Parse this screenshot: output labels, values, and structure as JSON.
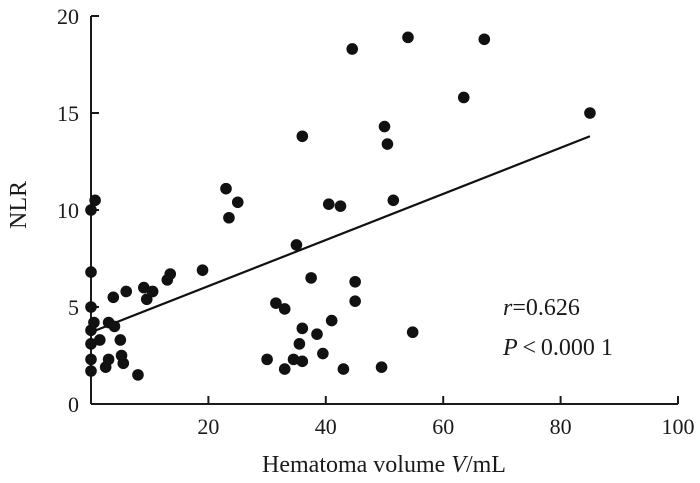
{
  "chart_data": {
    "type": "scatter",
    "xlabel": {
      "prefix": "Hematoma volume ",
      "variable": "V",
      "suffix": "/mL"
    },
    "ylabel": "NLR",
    "xlim": [
      0,
      100
    ],
    "ylim": [
      0,
      20
    ],
    "xticks": [
      0,
      20,
      40,
      60,
      80,
      100
    ],
    "yticks": [
      0,
      5,
      10,
      15,
      20
    ],
    "xtick_labels": [
      "20",
      "40",
      "60",
      "80",
      "100"
    ],
    "ytick_labels": [
      "0",
      "5",
      "10",
      "15",
      "20"
    ],
    "grid": false,
    "legend": "none",
    "marker_color": "#111111",
    "points": [
      {
        "x": 0.0,
        "y": 1.7
      },
      {
        "x": 0.0,
        "y": 2.3
      },
      {
        "x": 0.0,
        "y": 3.1
      },
      {
        "x": 0.0,
        "y": 3.8
      },
      {
        "x": 0.0,
        "y": 5.0
      },
      {
        "x": 0.0,
        "y": 6.8
      },
      {
        "x": 0.0,
        "y": 10.0
      },
      {
        "x": 0.7,
        "y": 10.5
      },
      {
        "x": 0.5,
        "y": 4.2
      },
      {
        "x": 1.5,
        "y": 3.3
      },
      {
        "x": 2.5,
        "y": 1.9
      },
      {
        "x": 3.0,
        "y": 2.3
      },
      {
        "x": 3.0,
        "y": 4.2
      },
      {
        "x": 3.8,
        "y": 5.5
      },
      {
        "x": 4.0,
        "y": 4.0
      },
      {
        "x": 5.0,
        "y": 3.3
      },
      {
        "x": 5.2,
        "y": 2.5
      },
      {
        "x": 5.5,
        "y": 2.1
      },
      {
        "x": 6.0,
        "y": 5.8
      },
      {
        "x": 8.0,
        "y": 1.5
      },
      {
        "x": 9.0,
        "y": 6.0
      },
      {
        "x": 9.5,
        "y": 5.4
      },
      {
        "x": 10.5,
        "y": 5.8
      },
      {
        "x": 13.0,
        "y": 6.4
      },
      {
        "x": 13.5,
        "y": 6.7
      },
      {
        "x": 19.0,
        "y": 6.9
      },
      {
        "x": 23.0,
        "y": 11.1
      },
      {
        "x": 23.5,
        "y": 9.6
      },
      {
        "x": 25.0,
        "y": 10.4
      },
      {
        "x": 30.0,
        "y": 2.3
      },
      {
        "x": 31.5,
        "y": 5.2
      },
      {
        "x": 33.0,
        "y": 4.9
      },
      {
        "x": 33.0,
        "y": 1.8
      },
      {
        "x": 34.5,
        "y": 2.3
      },
      {
        "x": 35.0,
        "y": 8.2
      },
      {
        "x": 35.5,
        "y": 3.1
      },
      {
        "x": 36.0,
        "y": 3.9
      },
      {
        "x": 36.0,
        "y": 13.8
      },
      {
        "x": 36.0,
        "y": 2.2
      },
      {
        "x": 37.5,
        "y": 6.5
      },
      {
        "x": 38.5,
        "y": 3.6
      },
      {
        "x": 39.5,
        "y": 2.6
      },
      {
        "x": 40.5,
        "y": 10.3
      },
      {
        "x": 41.0,
        "y": 4.3
      },
      {
        "x": 42.5,
        "y": 10.2
      },
      {
        "x": 43.0,
        "y": 1.8
      },
      {
        "x": 44.5,
        "y": 18.3
      },
      {
        "x": 45.0,
        "y": 5.3
      },
      {
        "x": 45.0,
        "y": 6.3
      },
      {
        "x": 49.5,
        "y": 1.9
      },
      {
        "x": 50.0,
        "y": 14.3
      },
      {
        "x": 50.5,
        "y": 13.4
      },
      {
        "x": 51.5,
        "y": 10.5
      },
      {
        "x": 54.0,
        "y": 18.9
      },
      {
        "x": 54.8,
        "y": 3.7
      },
      {
        "x": 63.5,
        "y": 15.8
      },
      {
        "x": 67.0,
        "y": 18.8
      },
      {
        "x": 85.0,
        "y": 15.0
      }
    ],
    "trendline": {
      "x": [
        0,
        85
      ],
      "y": [
        3.7,
        13.8
      ]
    },
    "annotation": {
      "r_symbol": "r",
      "r_value": "=0.626",
      "p_symbol": "P",
      "p_value": " < 0.000 1"
    }
  }
}
